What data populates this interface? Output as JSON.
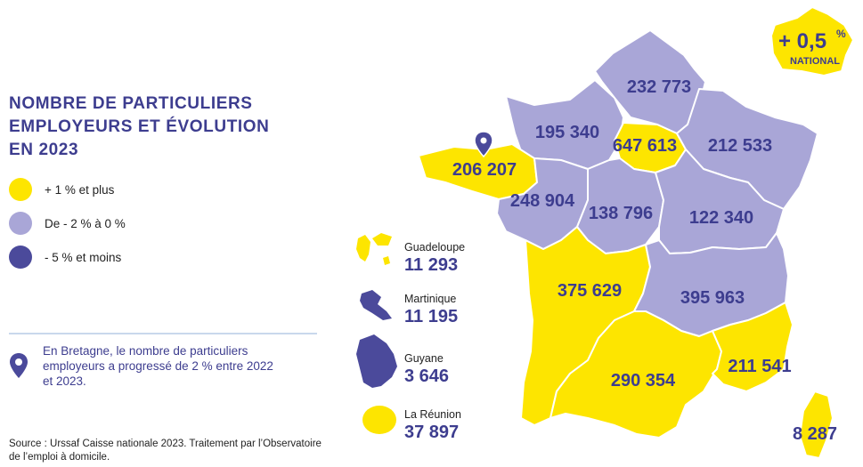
{
  "title": [
    "NOMBRE DE PARTICULIERS",
    "EMPLOYEURS ET ÉVOLUTION",
    "EN 2023"
  ],
  "colors": {
    "yellow": "#fde500",
    "light_purple": "#a9a6d7",
    "dark_purple": "#4b4a9b",
    "text": "#3d3d8f"
  },
  "legend": [
    {
      "label": "+ 1 % et plus",
      "color": "#fde500"
    },
    {
      "label": "De - 2 % à  0 %",
      "color": "#a9a6d7"
    },
    {
      "label": "- 5 % et moins",
      "color": "#4b4a9b"
    }
  ],
  "note": [
    "En Bretagne, le nombre de particuliers",
    "employeurs a progressé de 2 % entre 2022",
    "et 2023."
  ],
  "source": [
    "Source : Urssaf Caisse nationale 2023. Traitement par l’Observatoire",
    "de l’emploi à domicile."
  ],
  "national": {
    "value": "+ 0,5",
    "unit": "%",
    "label": "NATIONAL"
  },
  "regions": {
    "hauts_de_france": "232 773",
    "normandie": "195 340",
    "ile_de_france": "647 613",
    "grand_est": "212 533",
    "bretagne": "206 207",
    "pays_de_la_loire": "248 904",
    "centre_val_de_loire": "138 796",
    "bourgogne_franche_comte": "122 340",
    "nouvelle_aquitaine": "375 629",
    "auvergne_rhone_alpes": "395 963",
    "occitanie": "290 354",
    "paca": "211 541",
    "corse": "8 287"
  },
  "overseas": [
    {
      "name": "Guadeloupe",
      "value": "11 293"
    },
    {
      "name": "Martinique",
      "value": "11 195"
    },
    {
      "name": "Guyane",
      "value": "3 646"
    },
    {
      "name": "La Réunion",
      "value": "37 897"
    }
  ]
}
